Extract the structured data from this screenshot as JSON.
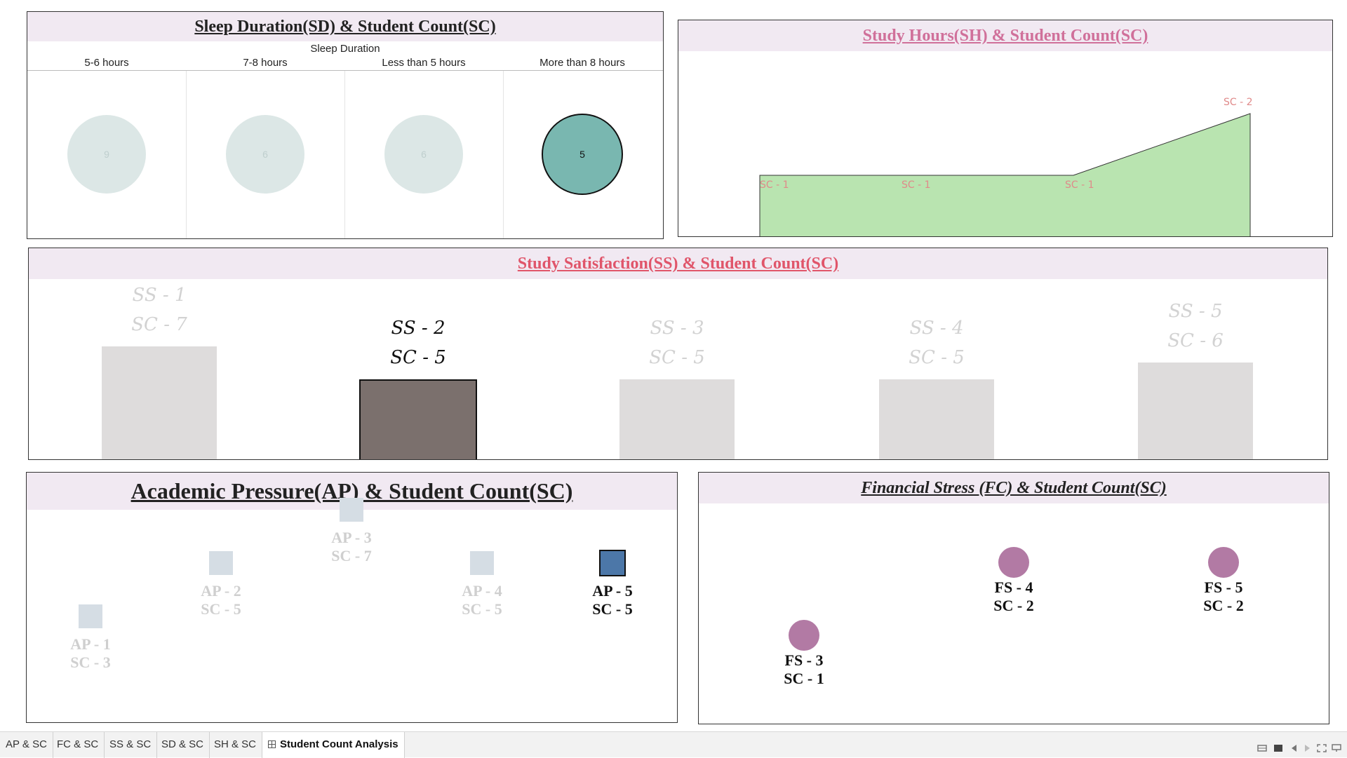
{
  "sleep_panel": {
    "title": "Sleep Duration(SD) & Student Count(SC)",
    "axis_title": "Sleep Duration",
    "columns": [
      {
        "label": "5-6 hours",
        "count": "9"
      },
      {
        "label": "7-8 hours",
        "count": "6"
      },
      {
        "label": "Less than 5 hours",
        "count": "6"
      },
      {
        "label": "More than 8 hours",
        "count": "5"
      }
    ],
    "selected_index": 3
  },
  "hours_panel": {
    "title": "Study Hours(SH) & Student Count(SC)",
    "fill_color": "#b9e4b0",
    "points": [
      {
        "label": "SC - 1",
        "value": 1
      },
      {
        "label": "SC - 1",
        "value": 1
      },
      {
        "label": "SC - 1",
        "value": 1
      },
      {
        "label": "SC - 2",
        "value": 2
      }
    ]
  },
  "satisfaction_panel": {
    "title": "Study Satisfaction(SS) & Student Count(SC)",
    "bars": [
      {
        "ss": "SS - 1",
        "sc": "SC - 7",
        "value": 7
      },
      {
        "ss": "SS - 2",
        "sc": "SC - 5",
        "value": 5
      },
      {
        "ss": "SS - 3",
        "sc": "SC - 5",
        "value": 5
      },
      {
        "ss": "SS - 4",
        "sc": "SC - 5",
        "value": 5
      },
      {
        "ss": "SS - 5",
        "sc": "SC - 6",
        "value": 6
      }
    ],
    "selected_index": 1
  },
  "academic_panel": {
    "title": "Academic Pressure(AP) & Student Count(SC)",
    "points": [
      {
        "ap": "AP - 1",
        "sc": "SC - 3",
        "value": 3
      },
      {
        "ap": "AP - 2",
        "sc": "SC - 5",
        "value": 5
      },
      {
        "ap": "AP - 3",
        "sc": "SC - 7",
        "value": 7
      },
      {
        "ap": "AP - 4",
        "sc": "SC - 5",
        "value": 5
      },
      {
        "ap": "AP - 5",
        "sc": "SC - 5",
        "value": 5
      }
    ],
    "selected_index": 4
  },
  "financial_panel": {
    "title": "Financial Stress (FC) & Student Count(SC)",
    "points": [
      {
        "fs": "FS - 3",
        "sc": "SC - 1",
        "value": 1
      },
      {
        "fs": "FS - 4",
        "sc": "SC - 2",
        "value": 2
      },
      {
        "fs": "FS - 5",
        "sc": "SC - 2",
        "value": 2
      }
    ]
  },
  "tabs": [
    {
      "label": "AP & SC"
    },
    {
      "label": "FC & SC"
    },
    {
      "label": "SS & SC"
    },
    {
      "label": "SD & SC"
    },
    {
      "label": "SH & SC"
    },
    {
      "label": "Student Count Analysis",
      "active": true
    }
  ],
  "controls": [
    "filmstrip-icon",
    "sheet-icon",
    "prev-icon",
    "next-icon",
    "fullscreen-icon",
    "present-icon"
  ]
}
